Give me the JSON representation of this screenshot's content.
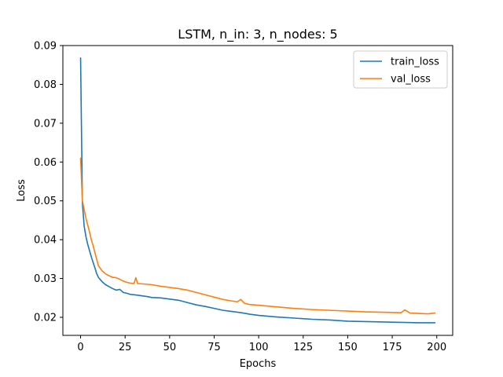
{
  "chart_data": {
    "type": "line",
    "title": "LSTM, n_in: 3, n_nodes: 5",
    "xlabel": "Epochs",
    "ylabel": "Loss",
    "xlim": [
      -9.95,
      208.95
    ],
    "ylim": [
      0.01535,
      0.09
    ],
    "xticks": [
      0,
      25,
      50,
      75,
      100,
      125,
      150,
      175,
      200
    ],
    "xtick_labels": [
      "0",
      "25",
      "50",
      "75",
      "100",
      "125",
      "150",
      "175",
      "200"
    ],
    "yticks": [
      0.02,
      0.03,
      0.04,
      0.05,
      0.06,
      0.07,
      0.08,
      0.09
    ],
    "ytick_labels": [
      "0.02",
      "0.03",
      "0.04",
      "0.05",
      "0.06",
      "0.07",
      "0.08",
      "0.09"
    ],
    "grid": false,
    "legend_position": "top-right",
    "series": [
      {
        "name": "train_loss",
        "color": "#1f77b4",
        "points": [
          [
            0,
            0.0868
          ],
          [
            1,
            0.0495
          ],
          [
            2,
            0.0435
          ],
          [
            3,
            0.0408
          ],
          [
            4,
            0.0388
          ],
          [
            5,
            0.0372
          ],
          [
            6,
            0.0356
          ],
          [
            7,
            0.0342
          ],
          [
            8,
            0.0328
          ],
          [
            9,
            0.0313
          ],
          [
            10,
            0.0303
          ],
          [
            12,
            0.0292
          ],
          [
            14,
            0.0284
          ],
          [
            16,
            0.0279
          ],
          [
            18,
            0.0274
          ],
          [
            20,
            0.027
          ],
          [
            22,
            0.0272
          ],
          [
            24,
            0.0264
          ],
          [
            26,
            0.0262
          ],
          [
            28,
            0.0259
          ],
          [
            30,
            0.0258
          ],
          [
            32,
            0.0257
          ],
          [
            35,
            0.0255
          ],
          [
            38,
            0.0253
          ],
          [
            40,
            0.0251
          ],
          [
            45,
            0.025
          ],
          [
            50,
            0.0247
          ],
          [
            55,
            0.0244
          ],
          [
            60,
            0.0238
          ],
          [
            65,
            0.0232
          ],
          [
            70,
            0.0228
          ],
          [
            75,
            0.0223
          ],
          [
            80,
            0.0218
          ],
          [
            85,
            0.0215
          ],
          [
            90,
            0.0212
          ],
          [
            95,
            0.0208
          ],
          [
            100,
            0.0205
          ],
          [
            110,
            0.0201
          ],
          [
            120,
            0.0198
          ],
          [
            130,
            0.0195
          ],
          [
            140,
            0.0193
          ],
          [
            150,
            0.019
          ],
          [
            160,
            0.0189
          ],
          [
            170,
            0.0188
          ],
          [
            180,
            0.0187
          ],
          [
            190,
            0.0186
          ],
          [
            199,
            0.0186
          ]
        ]
      },
      {
        "name": "val_loss",
        "color": "#ff7f0e",
        "points": [
          [
            0,
            0.061
          ],
          [
            1,
            0.05
          ],
          [
            2,
            0.0478
          ],
          [
            3,
            0.0455
          ],
          [
            4,
            0.0438
          ],
          [
            5,
            0.042
          ],
          [
            6,
            0.04
          ],
          [
            7,
            0.0385
          ],
          [
            8,
            0.0367
          ],
          [
            9,
            0.035
          ],
          [
            10,
            0.0333
          ],
          [
            12,
            0.032
          ],
          [
            14,
            0.0312
          ],
          [
            16,
            0.0307
          ],
          [
            18,
            0.0303
          ],
          [
            20,
            0.0302
          ],
          [
            22,
            0.0298
          ],
          [
            24,
            0.0293
          ],
          [
            26,
            0.029
          ],
          [
            28,
            0.0288
          ],
          [
            30,
            0.0287
          ],
          [
            31,
            0.0302
          ],
          [
            32,
            0.0287
          ],
          [
            35,
            0.0286
          ],
          [
            40,
            0.0284
          ],
          [
            45,
            0.028
          ],
          [
            50,
            0.0277
          ],
          [
            55,
            0.0274
          ],
          [
            60,
            0.027
          ],
          [
            65,
            0.0264
          ],
          [
            70,
            0.0258
          ],
          [
            75,
            0.0252
          ],
          [
            80,
            0.0246
          ],
          [
            85,
            0.0242
          ],
          [
            88,
            0.024
          ],
          [
            90,
            0.0246
          ],
          [
            92,
            0.0236
          ],
          [
            95,
            0.0233
          ],
          [
            100,
            0.0231
          ],
          [
            110,
            0.0227
          ],
          [
            120,
            0.0223
          ],
          [
            130,
            0.022
          ],
          [
            140,
            0.0218
          ],
          [
            150,
            0.0216
          ],
          [
            160,
            0.0214
          ],
          [
            170,
            0.0213
          ],
          [
            180,
            0.0212
          ],
          [
            182,
            0.0219
          ],
          [
            185,
            0.0211
          ],
          [
            190,
            0.021
          ],
          [
            195,
            0.0209
          ],
          [
            199,
            0.0211
          ]
        ]
      }
    ]
  }
}
